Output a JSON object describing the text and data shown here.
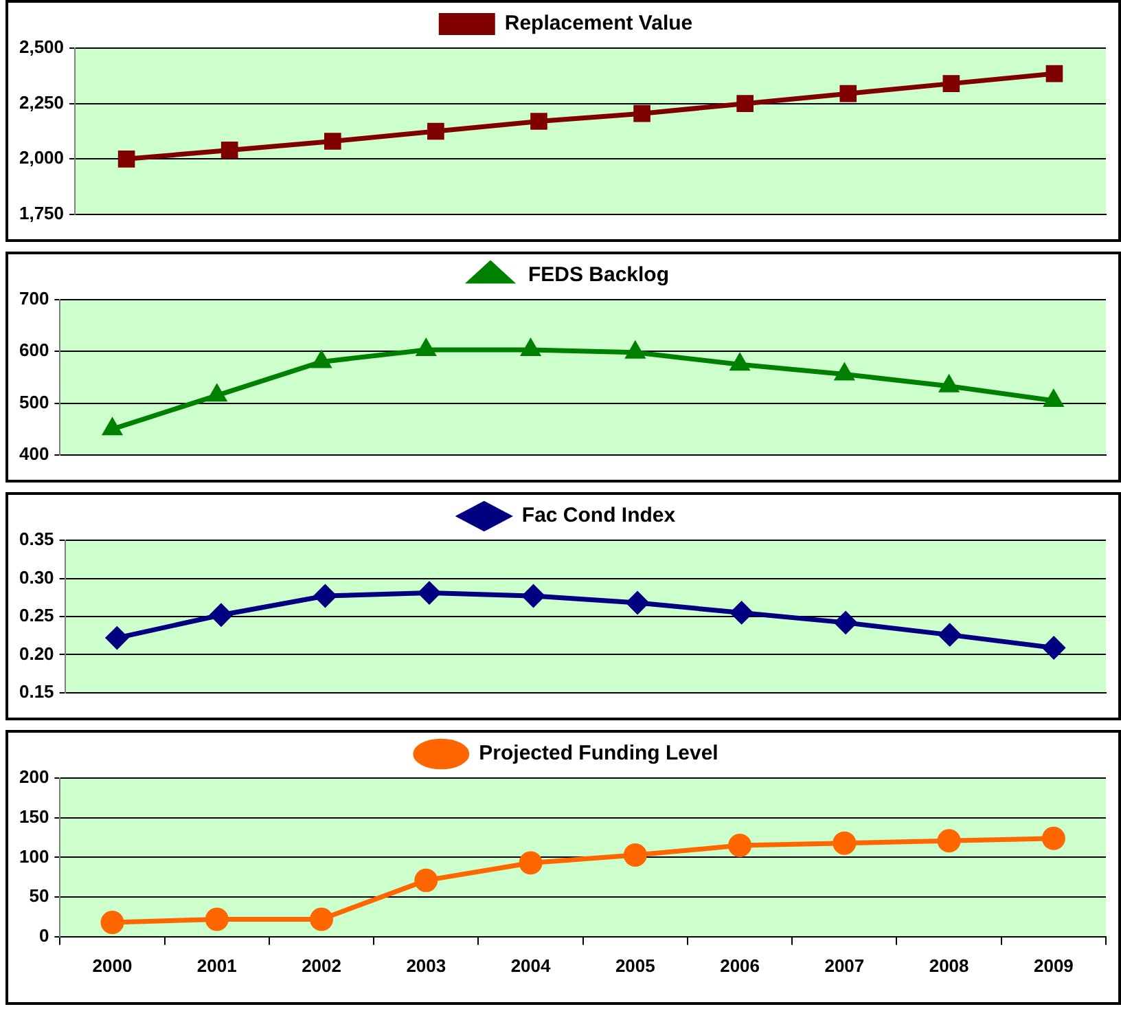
{
  "chart_data": [
    {
      "type": "line",
      "categories": [
        "2000",
        "2001",
        "2002",
        "2003",
        "2004",
        "2005",
        "2006",
        "2007",
        "2008",
        "2009"
      ],
      "series": [
        {
          "name": "Replacement Value",
          "color": "#800000",
          "values": [
            2000,
            2040,
            2080,
            2125,
            2170,
            2205,
            2250,
            2295,
            2340,
            2385
          ]
        }
      ],
      "ylim": [
        1750,
        2500
      ],
      "yticks": [
        {
          "value": 1750,
          "label": "1,750"
        },
        {
          "value": 2000,
          "label": "2,000"
        },
        {
          "value": 2250,
          "label": "2,250"
        },
        {
          "value": 2500,
          "label": "2,500"
        }
      ],
      "grid": "y",
      "legend": "top",
      "marker": "square",
      "tick_labels": "y"
    },
    {
      "type": "line",
      "categories": [
        "2000",
        "2001",
        "2002",
        "2003",
        "2004",
        "2005",
        "2006",
        "2007",
        "2008",
        "2009"
      ],
      "series": [
        {
          "name": "FEDS Backlog",
          "color": "#008000",
          "values": [
            450,
            515,
            580,
            603,
            603,
            598,
            575,
            556,
            533,
            505
          ]
        }
      ],
      "ylim": [
        400,
        700
      ],
      "yticks": [
        400,
        500,
        600,
        700
      ],
      "grid": "y",
      "legend": "top",
      "marker": "triangle",
      "tick_labels": "y"
    },
    {
      "type": "line",
      "categories": [
        "2000",
        "2001",
        "2002",
        "2003",
        "2004",
        "2005",
        "2006",
        "2007",
        "2008",
        "2009"
      ],
      "series": [
        {
          "name": "Fac Cond Index",
          "color": "#000080",
          "values": [
            0.222,
            0.252,
            0.277,
            0.281,
            0.277,
            0.268,
            0.255,
            0.242,
            0.226,
            0.209
          ]
        }
      ],
      "ylim": [
        0.15,
        0.35
      ],
      "yticks": [
        {
          "value": 0.15,
          "label": "0.15"
        },
        {
          "value": 0.2,
          "label": "0.20"
        },
        {
          "value": 0.25,
          "label": "0.25"
        },
        {
          "value": 0.3,
          "label": "0.30"
        },
        {
          "value": 0.35,
          "label": "0.35"
        }
      ],
      "grid": "y",
      "legend": "top",
      "marker": "diamond",
      "tick_labels": "y"
    },
    {
      "type": "line",
      "categories": [
        "2000",
        "2001",
        "2002",
        "2003",
        "2004",
        "2005",
        "2006",
        "2007",
        "2008",
        "2009"
      ],
      "series": [
        {
          "name": "Projected Funding Level",
          "color": "#ff6600",
          "values": [
            18,
            22,
            22,
            71,
            93,
            103,
            115,
            118,
            121,
            124
          ]
        }
      ],
      "ylim": [
        0,
        200
      ],
      "yticks": [
        0,
        50,
        100,
        150,
        200
      ],
      "grid": "y",
      "legend": "top",
      "marker": "circle"
    }
  ]
}
